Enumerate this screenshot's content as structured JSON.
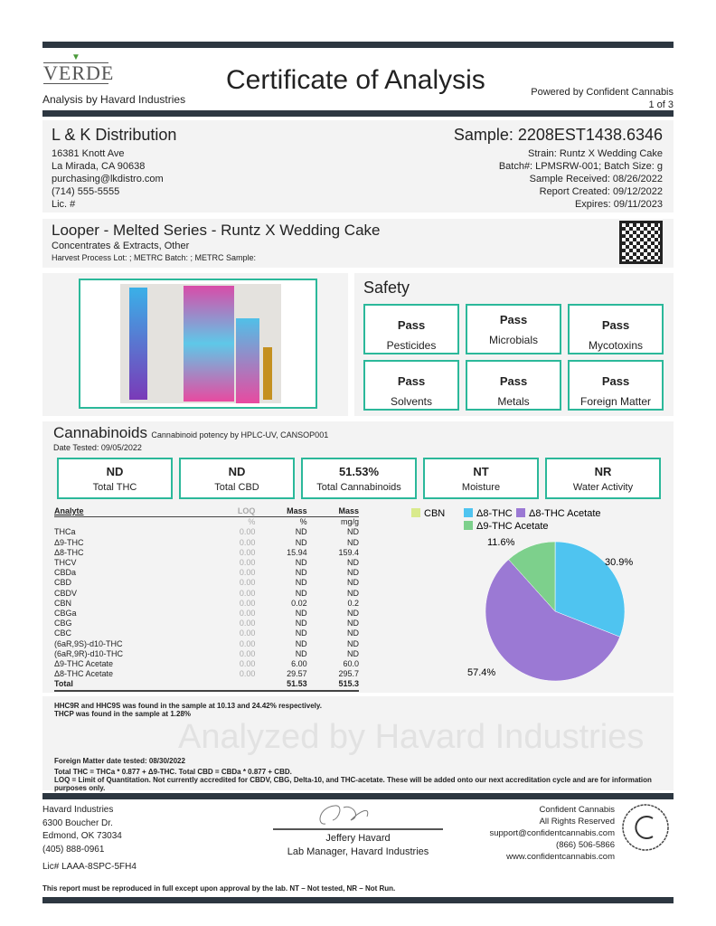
{
  "header": {
    "logo": "VERDE TESTING",
    "analysis_by": "Analysis by Havard Industries",
    "title": "Certificate of Analysis",
    "powered_by": "Powered by Confident Cannabis",
    "page": "1 of 3"
  },
  "client": {
    "name": "L & K Distribution",
    "address1": "16381 Knott Ave",
    "address2": "La Mirada, CA 90638",
    "email": "purchasing@lkdistro.com",
    "phone": "(714) 555-5555",
    "license": "Lic. #"
  },
  "sample": {
    "id": "Sample: 2208EST1438.6346",
    "strain": "Strain: Runtz X Wedding Cake",
    "batch": "Batch#: LPMSRW-001; Batch Size:  g",
    "received": "Sample Received: 08/26/2022",
    "report_created": "Report Created: 09/12/2022",
    "expires": "Expires: 09/11/2023"
  },
  "product": {
    "name": "Looper - Melted Series - Runtz X Wedding Cake",
    "category": "Concentrates & Extracts, Other",
    "lots": "Harvest Process Lot: ; METRC Batch: ; METRC Sample:"
  },
  "safety": {
    "title": "Safety",
    "items": [
      {
        "status": "Pass",
        "label": "Pesticides"
      },
      {
        "status": "Pass",
        "label": "Microbials"
      },
      {
        "status": "Pass",
        "label": "Mycotoxins"
      },
      {
        "status": "Pass",
        "label": "Solvents"
      },
      {
        "status": "Pass",
        "label": "Metals"
      },
      {
        "status": "Pass",
        "label": "Foreign Matter"
      }
    ]
  },
  "cannabinoids": {
    "title": "Cannabinoids",
    "method": "Cannabinoid potency by HPLC-UV, CANSOP001",
    "date_tested": "Date Tested: 09/05/2022",
    "summary": [
      {
        "value": "ND",
        "label": "Total THC"
      },
      {
        "value": "ND",
        "label": "Total CBD"
      },
      {
        "value": "51.53%",
        "label": "Total Cannabinoids"
      },
      {
        "value": "NT",
        "label": "Moisture"
      },
      {
        "value": "NR",
        "label": "Water Activity"
      }
    ],
    "table": {
      "headers": [
        "Analyte",
        "LOQ",
        "Mass",
        "Mass"
      ],
      "units": [
        "",
        "%",
        "%",
        "mg/g"
      ],
      "rows": [
        [
          "THCa",
          "0.00",
          "ND",
          "ND"
        ],
        [
          "Δ9-THC",
          "0.00",
          "ND",
          "ND"
        ],
        [
          "Δ8-THC",
          "0.00",
          "15.94",
          "159.4"
        ],
        [
          "THCV",
          "0.00",
          "ND",
          "ND"
        ],
        [
          "CBDa",
          "0.00",
          "ND",
          "ND"
        ],
        [
          "CBD",
          "0.00",
          "ND",
          "ND"
        ],
        [
          "CBDV",
          "0.00",
          "ND",
          "ND"
        ],
        [
          "CBN",
          "0.00",
          "0.02",
          "0.2"
        ],
        [
          "CBGa",
          "0.00",
          "ND",
          "ND"
        ],
        [
          "CBG",
          "0.00",
          "ND",
          "ND"
        ],
        [
          "CBC",
          "0.00",
          "ND",
          "ND"
        ],
        [
          "(6aR,9S)-d10-THC",
          "0.00",
          "ND",
          "ND"
        ],
        [
          "(6aR,9R)-d10-THC",
          "0.00",
          "ND",
          "ND"
        ],
        [
          "Δ9-THC Acetate",
          "0.00",
          "6.00",
          "60.0"
        ],
        [
          "Δ8-THC Acetate",
          "0.00",
          "29.57",
          "295.7"
        ]
      ],
      "total": [
        "Total",
        "",
        "51.53",
        "515.3"
      ]
    }
  },
  "chart_data": {
    "type": "pie",
    "legend_placement": "top",
    "slices": [
      {
        "name": "CBN",
        "value": 0.02,
        "color": "#d9ea8c",
        "label": ""
      },
      {
        "name": "Δ8-THC",
        "value": 15.94,
        "color": "#4fc4f0",
        "label": "30.9%"
      },
      {
        "name": "Δ8-THC Acetate",
        "value": 29.57,
        "color": "#9b79d4",
        "label": "57.4%"
      },
      {
        "name": "Δ9-THC Acetate",
        "value": 6.0,
        "color": "#7dd08c",
        "label": "11.6%"
      }
    ]
  },
  "notes": {
    "n1": "HHC9R and HHC9S was found in the sample at 10.13 and 24.42% respectively.",
    "n2": "THCP was found in the sample at 1.28%",
    "n3": "Foreign Matter date tested: 08/30/2022",
    "n4": "Total THC = THCa * 0.877 + Δ9-THC. Total CBD = CBDa * 0.877 + CBD.",
    "n5": "LOQ = Limit of Quantitation. Not currently accredited for CBDV, CBG, Delta-10, and THC-acetate. These will be added onto our next accreditation cycle and are for information purposes only.",
    "watermark": "Analyzed by Havard Industries"
  },
  "footer": {
    "lab": [
      "Havard Industries",
      "6300 Boucher Dr.",
      "Edmond, OK 73034",
      "(405) 888-0961"
    ],
    "lab_license": "Lic# LAAA-8SPC-5FH4",
    "signer": "Jeffery Havard",
    "signer_title": "Lab Manager, Havard Industries",
    "cc": [
      "Confident Cannabis",
      "All Rights Reserved",
      "support@confidentcannabis.com",
      "(866) 506-5866",
      "www.confidentcannabis.com"
    ],
    "cc_seal": "CONFIDENT CANNABIS",
    "disclaimer": "This report must be reproduced in full except upon approval by the lab. NT – Not tested, NR – Not Run."
  },
  "colors": {
    "accent": "#2bb89a",
    "bar": "#2d3741"
  }
}
